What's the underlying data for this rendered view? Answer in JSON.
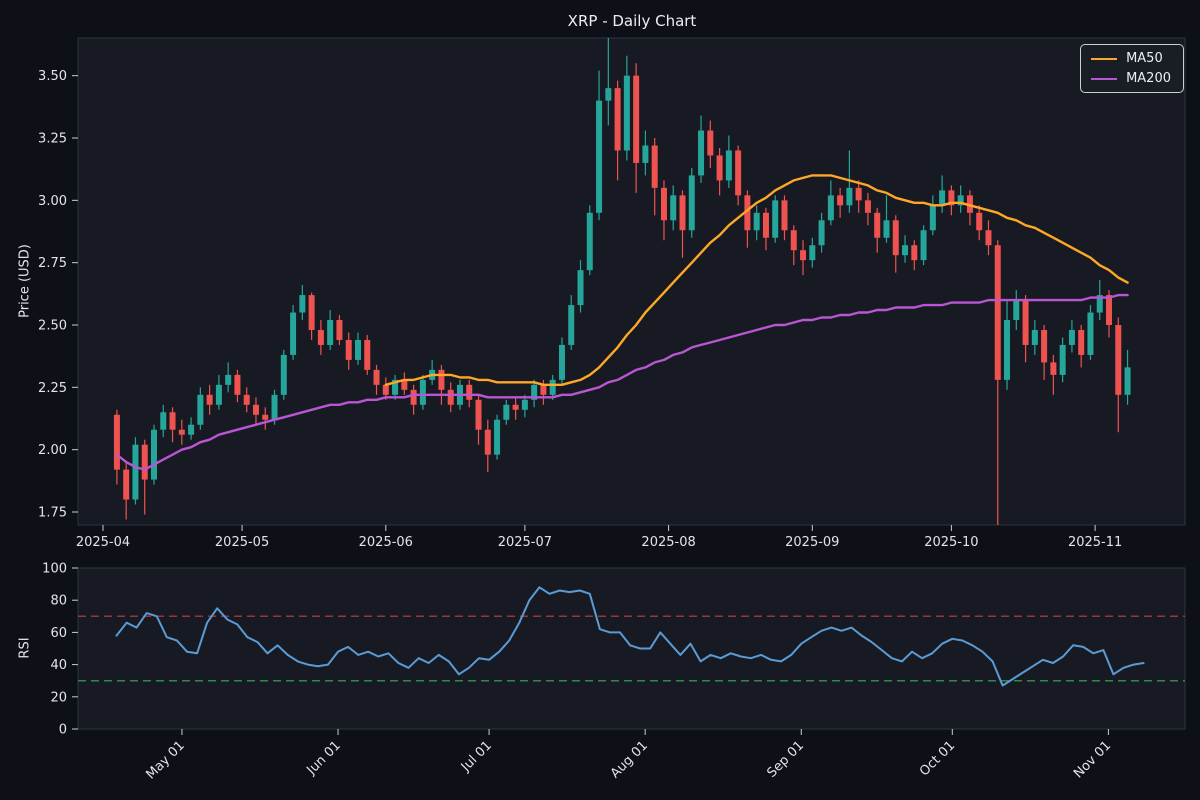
{
  "title": "XRP - Daily Chart",
  "colors": {
    "figure_bg": "#0d1016",
    "panel_bg": "#171a22",
    "panel_border": "#2e3440",
    "text": "#e2e5e9",
    "tick": "#c9cdd3",
    "up_candle": "#26a69a",
    "down_candle": "#ef5350",
    "ma50": "#ffa726",
    "ma200": "#ba55d3",
    "rsi_line": "#5b9bd5",
    "overbought_line": "#99363a",
    "oversold_line": "#2e8b45"
  },
  "chart_data": [
    {
      "type": "candlestick",
      "panel": "price",
      "ylabel": "Price (USD)",
      "start_date": "2025-04-04",
      "interval_days": 2,
      "ylim": [
        1.7,
        3.65
      ],
      "yticks": [
        "1.75",
        "2.00",
        "2.25",
        "2.50",
        "2.75",
        "3.00",
        "3.25",
        "3.50"
      ],
      "xticks": [
        {
          "day_offset": -3,
          "label": "2025-04"
        },
        {
          "day_offset": 27,
          "label": "2025-05"
        },
        {
          "day_offset": 58,
          "label": "2025-06"
        },
        {
          "day_offset": 88,
          "label": "2025-07"
        },
        {
          "day_offset": 119,
          "label": "2025-08"
        },
        {
          "day_offset": 150,
          "label": "2025-09"
        },
        {
          "day_offset": 180,
          "label": "2025-10"
        },
        {
          "day_offset": 211,
          "label": "2025-11"
        }
      ],
      "ohlc": [
        [
          2.14,
          2.16,
          1.86,
          1.92
        ],
        [
          1.92,
          1.95,
          1.72,
          1.8
        ],
        [
          1.8,
          2.05,
          1.78,
          2.02
        ],
        [
          2.02,
          2.04,
          1.74,
          1.88
        ],
        [
          1.88,
          2.1,
          1.86,
          2.08
        ],
        [
          2.08,
          2.18,
          2.05,
          2.15
        ],
        [
          2.15,
          2.17,
          2.03,
          2.08
        ],
        [
          2.08,
          2.12,
          2.02,
          2.06
        ],
        [
          2.06,
          2.13,
          2.04,
          2.1
        ],
        [
          2.1,
          2.25,
          2.08,
          2.22
        ],
        [
          2.22,
          2.26,
          2.14,
          2.18
        ],
        [
          2.18,
          2.3,
          2.16,
          2.26
        ],
        [
          2.26,
          2.35,
          2.23,
          2.3
        ],
        [
          2.3,
          2.32,
          2.19,
          2.22
        ],
        [
          2.22,
          2.25,
          2.15,
          2.18
        ],
        [
          2.18,
          2.21,
          2.1,
          2.14
        ],
        [
          2.14,
          2.17,
          2.08,
          2.12
        ],
        [
          2.12,
          2.24,
          2.1,
          2.22
        ],
        [
          2.22,
          2.4,
          2.2,
          2.38
        ],
        [
          2.38,
          2.58,
          2.36,
          2.55
        ],
        [
          2.55,
          2.66,
          2.52,
          2.62
        ],
        [
          2.62,
          2.63,
          2.44,
          2.48
        ],
        [
          2.48,
          2.52,
          2.38,
          2.42
        ],
        [
          2.42,
          2.56,
          2.4,
          2.52
        ],
        [
          2.52,
          2.54,
          2.42,
          2.44
        ],
        [
          2.44,
          2.47,
          2.32,
          2.36
        ],
        [
          2.36,
          2.47,
          2.34,
          2.44
        ],
        [
          2.44,
          2.46,
          2.3,
          2.32
        ],
        [
          2.32,
          2.34,
          2.22,
          2.26
        ],
        [
          2.26,
          2.29,
          2.2,
          2.22
        ],
        [
          2.22,
          2.3,
          2.2,
          2.28
        ],
        [
          2.28,
          2.31,
          2.22,
          2.24
        ],
        [
          2.24,
          2.26,
          2.14,
          2.18
        ],
        [
          2.18,
          2.3,
          2.16,
          2.28
        ],
        [
          2.28,
          2.36,
          2.26,
          2.32
        ],
        [
          2.32,
          2.34,
          2.18,
          2.24
        ],
        [
          2.24,
          2.27,
          2.15,
          2.18
        ],
        [
          2.18,
          2.28,
          2.16,
          2.26
        ],
        [
          2.26,
          2.28,
          2.17,
          2.2
        ],
        [
          2.2,
          2.22,
          2.02,
          2.08
        ],
        [
          2.08,
          2.12,
          1.91,
          1.98
        ],
        [
          1.98,
          2.14,
          1.96,
          2.12
        ],
        [
          2.12,
          2.2,
          2.1,
          2.18
        ],
        [
          2.18,
          2.21,
          2.12,
          2.16
        ],
        [
          2.16,
          2.22,
          2.13,
          2.2
        ],
        [
          2.2,
          2.28,
          2.17,
          2.26
        ],
        [
          2.26,
          2.28,
          2.18,
          2.22
        ],
        [
          2.22,
          2.3,
          2.2,
          2.28
        ],
        [
          2.28,
          2.45,
          2.26,
          2.42
        ],
        [
          2.42,
          2.62,
          2.4,
          2.58
        ],
        [
          2.58,
          2.76,
          2.55,
          2.72
        ],
        [
          2.72,
          2.98,
          2.7,
          2.95
        ],
        [
          2.95,
          3.52,
          2.92,
          3.4
        ],
        [
          3.4,
          3.66,
          3.3,
          3.45
        ],
        [
          3.45,
          3.48,
          3.08,
          3.2
        ],
        [
          3.2,
          3.58,
          3.16,
          3.5
        ],
        [
          3.5,
          3.55,
          3.03,
          3.15
        ],
        [
          3.15,
          3.28,
          3.1,
          3.22
        ],
        [
          3.22,
          3.25,
          2.94,
          3.05
        ],
        [
          3.05,
          3.08,
          2.84,
          2.92
        ],
        [
          2.92,
          3.06,
          2.88,
          3.02
        ],
        [
          3.02,
          3.04,
          2.77,
          2.88
        ],
        [
          2.88,
          3.13,
          2.85,
          3.1
        ],
        [
          3.1,
          3.34,
          3.07,
          3.28
        ],
        [
          3.28,
          3.32,
          3.13,
          3.18
        ],
        [
          3.18,
          3.21,
          3.02,
          3.08
        ],
        [
          3.08,
          3.26,
          3.05,
          3.2
        ],
        [
          3.2,
          3.22,
          2.98,
          3.02
        ],
        [
          3.02,
          3.04,
          2.81,
          2.88
        ],
        [
          2.88,
          2.98,
          2.84,
          2.95
        ],
        [
          2.95,
          2.97,
          2.8,
          2.85
        ],
        [
          2.85,
          3.02,
          2.83,
          3.0
        ],
        [
          3.0,
          3.02,
          2.84,
          2.88
        ],
        [
          2.88,
          2.9,
          2.74,
          2.8
        ],
        [
          2.8,
          2.84,
          2.7,
          2.76
        ],
        [
          2.76,
          2.85,
          2.73,
          2.82
        ],
        [
          2.82,
          2.95,
          2.79,
          2.92
        ],
        [
          2.92,
          3.08,
          2.9,
          3.02
        ],
        [
          3.02,
          3.05,
          2.93,
          2.98
        ],
        [
          2.98,
          3.2,
          2.95,
          3.05
        ],
        [
          3.05,
          3.08,
          2.95,
          3.0
        ],
        [
          3.0,
          3.03,
          2.9,
          2.95
        ],
        [
          2.95,
          2.97,
          2.79,
          2.85
        ],
        [
          2.85,
          3.02,
          2.83,
          2.92
        ],
        [
          2.92,
          2.94,
          2.71,
          2.78
        ],
        [
          2.78,
          2.86,
          2.75,
          2.82
        ],
        [
          2.82,
          2.84,
          2.72,
          2.76
        ],
        [
          2.76,
          2.9,
          2.74,
          2.88
        ],
        [
          2.88,
          3.02,
          2.86,
          2.98
        ],
        [
          2.98,
          3.1,
          2.95,
          3.04
        ],
        [
          3.04,
          3.06,
          2.94,
          2.98
        ],
        [
          2.98,
          3.06,
          2.95,
          3.02
        ],
        [
          3.02,
          3.04,
          2.9,
          2.95
        ],
        [
          2.95,
          2.98,
          2.84,
          2.88
        ],
        [
          2.88,
          2.92,
          2.78,
          2.82
        ],
        [
          2.82,
          2.84,
          1.2,
          2.28
        ],
        [
          2.28,
          2.6,
          2.24,
          2.52
        ],
        [
          2.52,
          2.64,
          2.48,
          2.6
        ],
        [
          2.6,
          2.62,
          2.35,
          2.42
        ],
        [
          2.42,
          2.52,
          2.38,
          2.48
        ],
        [
          2.48,
          2.5,
          2.28,
          2.35
        ],
        [
          2.35,
          2.38,
          2.22,
          2.3
        ],
        [
          2.3,
          2.45,
          2.27,
          2.42
        ],
        [
          2.42,
          2.52,
          2.39,
          2.48
        ],
        [
          2.48,
          2.5,
          2.33,
          2.38
        ],
        [
          2.38,
          2.58,
          2.36,
          2.55
        ],
        [
          2.55,
          2.68,
          2.52,
          2.62
        ],
        [
          2.62,
          2.64,
          2.45,
          2.5
        ],
        [
          2.5,
          2.53,
          2.07,
          2.22
        ],
        [
          2.22,
          2.4,
          2.18,
          2.33
        ]
      ],
      "series": [
        {
          "name": "MA50",
          "type": "line",
          "color": "#ffa726",
          "start_day": 58,
          "interval_days": 2,
          "values": [
            2.26,
            2.27,
            2.28,
            2.28,
            2.29,
            2.3,
            2.3,
            2.3,
            2.29,
            2.29,
            2.28,
            2.28,
            2.27,
            2.27,
            2.27,
            2.27,
            2.27,
            2.26,
            2.26,
            2.26,
            2.27,
            2.28,
            2.3,
            2.33,
            2.37,
            2.41,
            2.46,
            2.5,
            2.55,
            2.59,
            2.63,
            2.67,
            2.71,
            2.75,
            2.79,
            2.83,
            2.86,
            2.9,
            2.93,
            2.96,
            2.99,
            3.01,
            3.04,
            3.06,
            3.08,
            3.09,
            3.1,
            3.1,
            3.1,
            3.09,
            3.08,
            3.07,
            3.06,
            3.04,
            3.03,
            3.01,
            3.0,
            2.99,
            2.99,
            2.98,
            2.98,
            2.99,
            2.99,
            2.98,
            2.97,
            2.96,
            2.95,
            2.93,
            2.92,
            2.9,
            2.89,
            2.87,
            2.85,
            2.83,
            2.81,
            2.79,
            2.77,
            2.74,
            2.72,
            2.69,
            2.67
          ]
        },
        {
          "name": "MA200",
          "type": "line",
          "color": "#ba55d3",
          "start_day": 0,
          "interval_days": 2,
          "values": [
            1.98,
            1.95,
            1.93,
            1.92,
            1.94,
            1.96,
            1.98,
            2.0,
            2.01,
            2.03,
            2.04,
            2.06,
            2.07,
            2.08,
            2.09,
            2.1,
            2.11,
            2.12,
            2.13,
            2.14,
            2.15,
            2.16,
            2.17,
            2.18,
            2.18,
            2.19,
            2.19,
            2.2,
            2.2,
            2.21,
            2.21,
            2.21,
            2.22,
            2.22,
            2.22,
            2.22,
            2.22,
            2.22,
            2.22,
            2.22,
            2.21,
            2.21,
            2.21,
            2.21,
            2.21,
            2.21,
            2.21,
            2.21,
            2.22,
            2.22,
            2.23,
            2.24,
            2.25,
            2.27,
            2.28,
            2.3,
            2.32,
            2.33,
            2.35,
            2.36,
            2.38,
            2.39,
            2.41,
            2.42,
            2.43,
            2.44,
            2.45,
            2.46,
            2.47,
            2.48,
            2.49,
            2.5,
            2.5,
            2.51,
            2.52,
            2.52,
            2.53,
            2.53,
            2.54,
            2.54,
            2.55,
            2.55,
            2.56,
            2.56,
            2.57,
            2.57,
            2.57,
            2.58,
            2.58,
            2.58,
            2.59,
            2.59,
            2.59,
            2.59,
            2.6,
            2.6,
            2.6,
            2.6,
            2.6,
            2.6,
            2.6,
            2.6,
            2.6,
            2.6,
            2.6,
            2.61,
            2.61,
            2.61,
            2.62,
            2.62
          ]
        }
      ],
      "legend": {
        "position": "upper right",
        "entries": [
          "MA50",
          "MA200"
        ]
      }
    },
    {
      "type": "line",
      "panel": "rsi",
      "ylabel": "RSI",
      "start_date": "2025-04-04",
      "ylim": [
        0,
        100
      ],
      "yticks": [
        "0",
        "20",
        "40",
        "60",
        "80",
        "100"
      ],
      "xticks": [
        {
          "day_offset": 27,
          "label": "May 01"
        },
        {
          "day_offset": 58,
          "label": "Jun 01"
        },
        {
          "day_offset": 88,
          "label": "Jul 01"
        },
        {
          "day_offset": 119,
          "label": "Aug 01"
        },
        {
          "day_offset": 150,
          "label": "Sep 01"
        },
        {
          "day_offset": 180,
          "label": "Oct 01"
        },
        {
          "day_offset": 211,
          "label": "Nov 01"
        }
      ],
      "series": [
        {
          "name": "RSI",
          "type": "line",
          "color": "#5b9bd5",
          "start_day": 14,
          "interval_days": 2,
          "values": [
            58,
            66,
            63,
            72,
            70,
            57,
            55,
            48,
            47,
            66,
            75,
            68,
            65,
            57,
            54,
            47,
            52,
            46,
            42,
            40,
            39,
            40,
            48,
            51,
            46,
            48,
            45,
            47,
            41,
            38,
            44,
            41,
            46,
            42,
            34,
            38,
            44,
            43,
            48,
            55,
            66,
            80,
            88,
            84,
            86,
            85,
            86,
            84,
            62,
            60,
            60,
            52,
            50,
            50,
            60,
            53,
            46,
            53,
            42,
            46,
            44,
            47,
            45,
            44,
            46,
            43,
            42,
            46,
            53,
            57,
            61,
            63,
            61,
            63,
            58,
            54,
            49,
            44,
            42,
            48,
            44,
            47,
            53,
            56,
            55,
            52,
            48,
            42,
            27,
            31,
            35,
            39,
            43,
            41,
            45,
            52,
            51,
            47,
            49,
            34,
            38,
            40,
            41
          ]
        }
      ],
      "reference_lines": [
        {
          "name": "overbought",
          "value": 70,
          "color": "#99363a",
          "style": "dashed"
        },
        {
          "name": "oversold",
          "value": 30,
          "color": "#2e8b45",
          "style": "dashed"
        }
      ]
    }
  ]
}
